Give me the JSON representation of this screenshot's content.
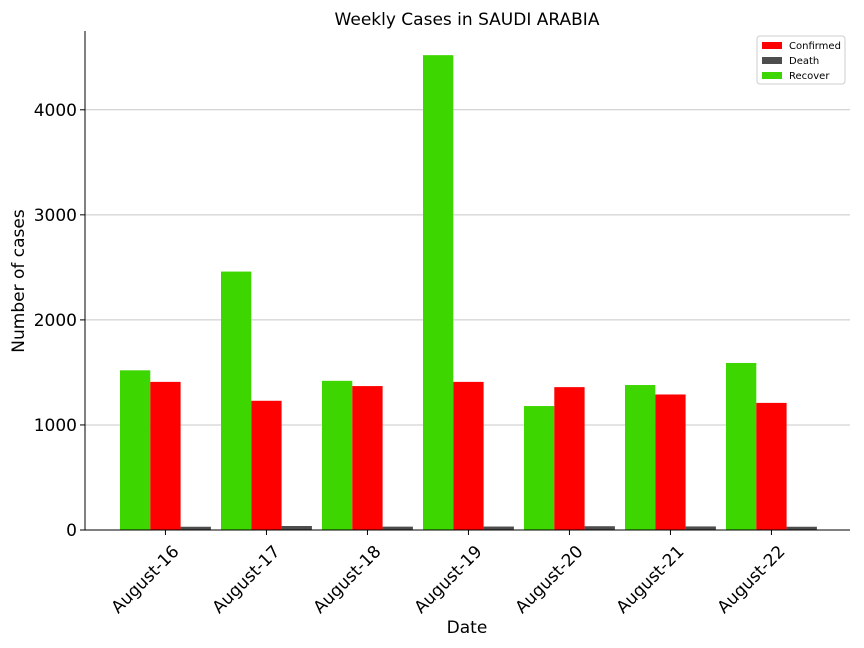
{
  "chart_data": {
    "type": "bar",
    "title": "Weekly Cases in SAUDI ARABIA",
    "xlabel": "Date",
    "ylabel": "Number of cases",
    "categories": [
      "August-16",
      "August-17",
      "August-18",
      "August-19",
      "August-20",
      "August-21",
      "August-22"
    ],
    "series": [
      {
        "name": "Recover",
        "color": "#3dd600",
        "values": [
          1520,
          2460,
          1420,
          4520,
          1180,
          1380,
          1590
        ]
      },
      {
        "name": "Confirmed",
        "color": "#ff0000",
        "values": [
          1410,
          1230,
          1370,
          1410,
          1360,
          1290,
          1210
        ]
      },
      {
        "name": "Death",
        "color": "#4d4d4d",
        "values": [
          31,
          38,
          32,
          33,
          36,
          34,
          31
        ]
      }
    ],
    "legend": [
      {
        "name": "Confirmed",
        "color": "#ff0000"
      },
      {
        "name": "Death",
        "color": "#4d4d4d"
      },
      {
        "name": "Recover",
        "color": "#3dd600"
      }
    ],
    "legend_position": "top-right",
    "yticks": [
      0,
      1000,
      2000,
      3000,
      4000
    ],
    "ylim": [
      0,
      4750
    ],
    "grid": "horizontal"
  }
}
